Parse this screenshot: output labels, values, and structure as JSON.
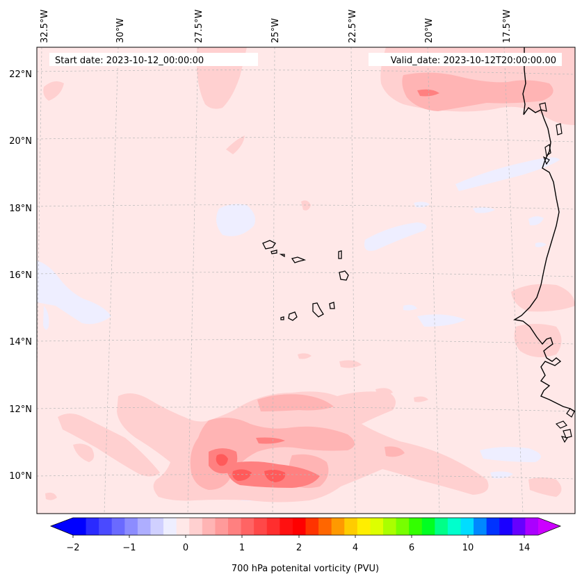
{
  "map": {
    "start_date": "Start date: 2023-10-12_00:00:00",
    "valid_date": "Valid_date: 2023-10-12T20:00:00.00",
    "lon_labels": [
      "32.5°W",
      "30°W",
      "27.5°W",
      "25°W",
      "22.5°W",
      "20°W",
      "17.5°W"
    ],
    "lat_labels": [
      "22°N",
      "20°N",
      "18°N",
      "16°N",
      "14°N",
      "12°N",
      "10°N"
    ],
    "background_color": "#ffe8e8",
    "coastline_color": "#000000",
    "gridline_color": "#b0b0b0"
  },
  "colorbar": {
    "label": "700 hPa potenital vorticity (PVU)",
    "tick_labels": [
      "−2",
      "−1",
      "0",
      "1",
      "2",
      "4",
      "6",
      "10",
      "14"
    ],
    "colors": [
      "#0000ff",
      "#2a2aff",
      "#4a4aff",
      "#6a6aff",
      "#8c8cff",
      "#aeaeff",
      "#d0d0ff",
      "#eeeeff",
      "#ffe8e8",
      "#ffd0d0",
      "#ffb4b4",
      "#ff9a9a",
      "#ff8080",
      "#ff6464",
      "#ff4848",
      "#ff2e2e",
      "#ff1010",
      "#ff0000",
      "#ff3300",
      "#ff6600",
      "#ff9900",
      "#ffcc00",
      "#ffee00",
      "#ddff00",
      "#aaff00",
      "#77ff00",
      "#33ff00",
      "#00ff22",
      "#00ff88",
      "#00ffcc",
      "#00ddff",
      "#0088ff",
      "#0033ff",
      "#1a00ff",
      "#6600ff",
      "#aa00ff"
    ],
    "extend_low_color": "#0000ff",
    "extend_high_color": "#cc00ff"
  }
}
